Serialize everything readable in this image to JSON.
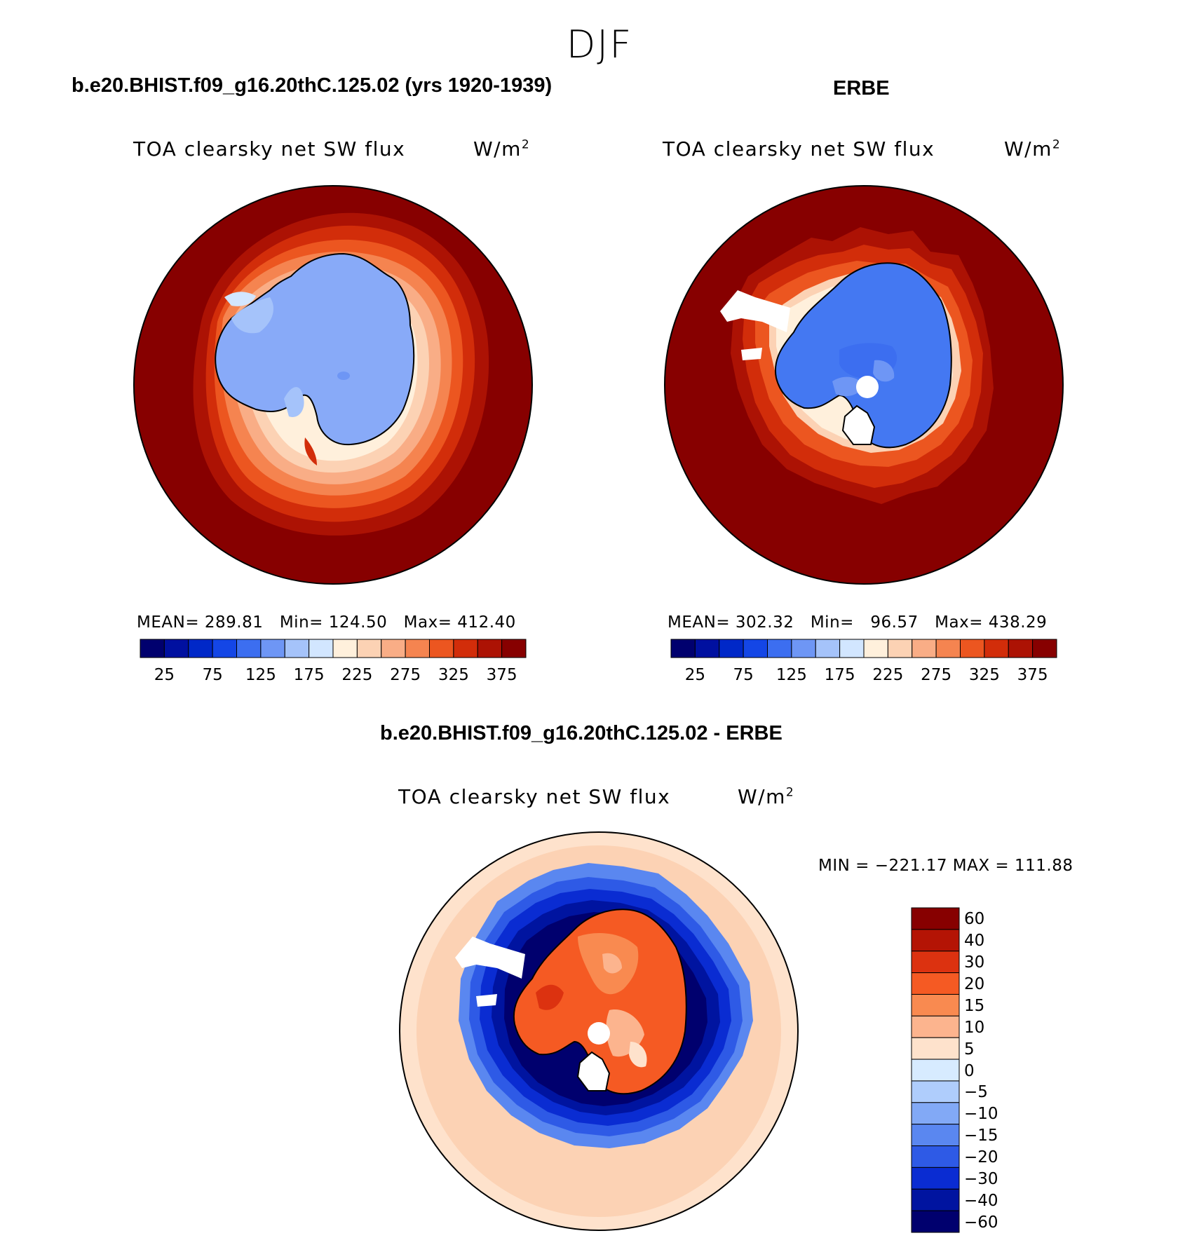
{
  "season": "DJF",
  "panels": [
    {
      "title": "b.e20.BHIST.f09_g16.20thC.125.02 (yrs 1920-1939)",
      "variable": "TOA clearsky net SW flux",
      "units": "W/m",
      "units_exp": "2",
      "stats": {
        "mean_label": "MEAN=",
        "mean": "289.81",
        "min_label": "Min=",
        "min": "124.50",
        "max_label": "Max=",
        "max": "412.40"
      }
    },
    {
      "title": "ERBE",
      "variable": "TOA clearsky net SW flux",
      "units": "W/m",
      "units_exp": "2",
      "stats": {
        "mean_label": "MEAN=",
        "mean": "302.32",
        "min_label": "Min=",
        "min": "96.57",
        "max_label": "Max=",
        "max": "438.29"
      }
    }
  ],
  "diff_panel": {
    "title": "b.e20.BHIST.f09_g16.20thC.125.02 - ERBE",
    "variable": "TOA clearsky net SW flux",
    "units": "W/m",
    "units_exp": "2",
    "minmax": "MIN = −221.17 MAX = 111.88"
  },
  "colorbar_main": {
    "colors": [
      "#00006e",
      "#0010a0",
      "#0028c8",
      "#1446e6",
      "#3c6ef0",
      "#6e96f5",
      "#a5c3fa",
      "#d2e6ff",
      "#fff0dc",
      "#fcd2b4",
      "#f9ad86",
      "#f58450",
      "#ec5620",
      "#d22d0a",
      "#ac1204",
      "#870000"
    ],
    "tick_labels": [
      "25",
      "75",
      "125",
      "175",
      "225",
      "275",
      "325",
      "375"
    ]
  },
  "colorbar_diff": {
    "colors": [
      "#870000",
      "#b41405",
      "#dc3210",
      "#f55a23",
      "#f98a50",
      "#fcb48e",
      "#fee2cc",
      "#d7ebff",
      "#afcdfc",
      "#82a9f6",
      "#5a87f0",
      "#2e5ae6",
      "#0a2cd2",
      "#0014a0",
      "#00006e"
    ],
    "tick_labels": [
      "60",
      "40",
      "30",
      "20",
      "15",
      "10",
      "5",
      "0",
      "−5",
      "−10",
      "−15",
      "−20",
      "−30",
      "−40",
      "−60"
    ]
  }
}
